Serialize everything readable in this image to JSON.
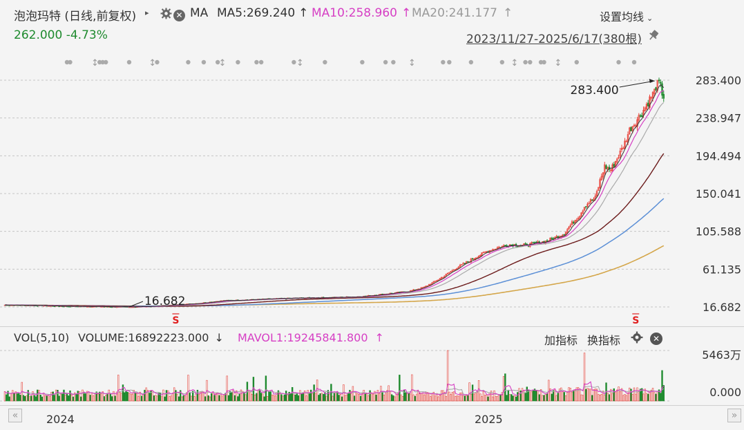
{
  "header": {
    "title": "泡泡玛特 (日线,前复权)",
    "ma_label": "MA",
    "ma5": "MA5:269.240",
    "ma5_arrow": "↑",
    "ma10": "MA10:258.960",
    "ma10_arrow": "↑",
    "ma20": "MA20:241.177",
    "ma20_arrow": "↑",
    "settings": "设置均线",
    "price": "262.000",
    "change": "-4.73%",
    "date_range": "2023/11/27-2025/6/17(380根)"
  },
  "colors": {
    "up": "#e8453c",
    "down": "#1e8a2e",
    "ma5": "#333333",
    "ma10": "#d63fc4",
    "ma20": "#aaaaaa",
    "ma60": "#6b1a1a",
    "ma120": "#5b8fd6",
    "ma250": "#d4a64a",
    "magenta_text": "#d63fc4"
  },
  "vol_header": {
    "label": "VOL(5,10)",
    "volume": "VOLUME:16892223.000",
    "volume_arrow": "↓",
    "mavol": "MAVOL1:19245841.800",
    "mavol_arrow": "↑",
    "add_indicator": "加指标",
    "switch_indicator": "换指标"
  },
  "icons": {
    "gear": "gear-icon",
    "close": "close-icon",
    "pin": "pin-icon",
    "scroll_left": "double-chevron-left-icon",
    "scroll_right": "double-chevron-right-icon"
  },
  "chart_data": {
    "type": "candlestick",
    "x_range": [
      "2023/11/27",
      "2025/6/17"
    ],
    "bar_count": 380,
    "x_ticks": [
      "2024",
      "2025"
    ],
    "y_ticks": [
      "283.400",
      "238.947",
      "194.494",
      "150.041",
      "105.588",
      "61.135",
      "16.682"
    ],
    "ylim": [
      16.682,
      283.4
    ],
    "annotations": {
      "max_label": "283.400",
      "min_label": "16.682",
      "signal_marker": "S"
    },
    "ma_values": {
      "MA5": 269.24,
      "MA10": 258.96,
      "MA20": 241.177
    },
    "last_close": 262.0,
    "change_pct": -4.73,
    "volume": {
      "y_ticks": [
        "5463万",
        "0.000"
      ],
      "ylim": [
        0,
        54630000
      ],
      "last_volume": 16892223.0,
      "mavol1": 19245841.8
    },
    "close_path": [
      [
        0,
        19
      ],
      [
        20,
        18.5
      ],
      [
        40,
        17.5
      ],
      [
        60,
        17.2
      ],
      [
        80,
        16.682
      ],
      [
        95,
        17.5
      ],
      [
        110,
        19
      ],
      [
        125,
        21
      ],
      [
        140,
        24
      ],
      [
        155,
        25
      ],
      [
        170,
        26
      ],
      [
        185,
        27
      ],
      [
        200,
        27.5
      ],
      [
        215,
        28
      ],
      [
        230,
        29
      ],
      [
        245,
        32
      ],
      [
        260,
        35
      ],
      [
        270,
        40
      ],
      [
        280,
        50
      ],
      [
        290,
        62
      ],
      [
        300,
        72
      ],
      [
        310,
        82
      ],
      [
        318,
        87
      ],
      [
        325,
        90
      ],
      [
        333,
        89
      ],
      [
        340,
        91
      ],
      [
        348,
        94
      ],
      [
        355,
        99
      ],
      [
        360,
        103
      ],
      [
        365,
        115
      ],
      [
        370,
        125
      ],
      [
        373,
        135
      ],
      [
        376,
        140
      ],
      [
        380,
        145
      ],
      [
        383,
        165
      ],
      [
        386,
        182
      ],
      [
        390,
        178
      ],
      [
        393,
        188
      ],
      [
        396,
        198
      ],
      [
        399,
        210
      ],
      [
        402,
        225
      ],
      [
        406,
        235
      ],
      [
        410,
        245
      ],
      [
        414,
        258
      ],
      [
        418,
        270
      ],
      [
        420,
        283.4
      ],
      [
        422,
        275
      ],
      [
        424,
        262
      ]
    ]
  }
}
